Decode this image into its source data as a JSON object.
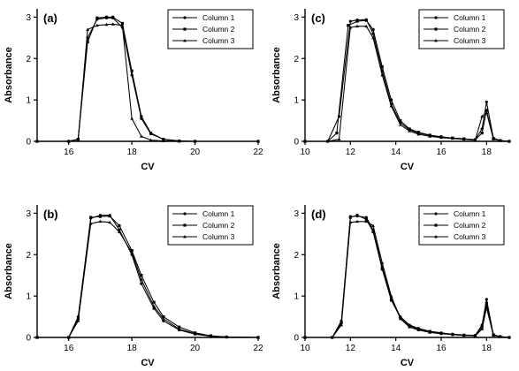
{
  "chart_data": [
    {
      "id": "a",
      "type": "line",
      "panel_label": "(a)",
      "xlabel": "CV",
      "ylabel": "Absorbance",
      "xlim": [
        15,
        22
      ],
      "ylim": [
        0,
        3.2
      ],
      "xticks": [
        16,
        18,
        20,
        22
      ],
      "yticks": [
        0,
        1,
        2,
        3
      ],
      "legend": "top-right",
      "series": [
        {
          "name": "Column 1",
          "x": [
            15,
            16.0,
            16.3,
            16.6,
            16.9,
            17.2,
            17.4,
            17.7,
            18.0,
            18.3,
            18.6,
            19.0,
            19.5,
            20.0,
            22
          ],
          "y": [
            0,
            0,
            0.05,
            2.5,
            2.95,
            2.98,
            2.98,
            2.75,
            1.6,
            0.55,
            0.18,
            0.05,
            0.01,
            0,
            0
          ]
        },
        {
          "name": "Column 2",
          "x": [
            15,
            16.0,
            16.3,
            16.6,
            16.9,
            17.2,
            17.4,
            17.7,
            18.0,
            18.3,
            18.6,
            19.0,
            19.5,
            20.0,
            22
          ],
          "y": [
            0,
            0,
            0.05,
            2.4,
            2.98,
            3.0,
            3.0,
            2.85,
            1.7,
            0.6,
            0.2,
            0.05,
            0.01,
            0,
            0
          ]
        },
        {
          "name": "Column 3",
          "x": [
            15,
            16.0,
            16.3,
            16.6,
            16.9,
            17.2,
            17.4,
            17.7,
            18.0,
            18.3,
            18.6,
            19.0,
            19.5,
            20.0,
            22
          ],
          "y": [
            0,
            0,
            0.05,
            2.7,
            2.8,
            2.82,
            2.83,
            2.8,
            0.55,
            0.12,
            0.03,
            0.01,
            0,
            0,
            0
          ]
        }
      ]
    },
    {
      "id": "c",
      "type": "line",
      "panel_label": "(c)",
      "xlabel": "CV",
      "ylabel": "Absorbance",
      "xlim": [
        10,
        19
      ],
      "ylim": [
        0,
        3.2
      ],
      "xticks": [
        10,
        12,
        14,
        16,
        18
      ],
      "yticks": [
        0,
        1,
        2,
        3
      ],
      "legend": "top-right",
      "series": [
        {
          "name": "Column 1",
          "x": [
            10,
            11.0,
            11.5,
            12.0,
            12.3,
            12.7,
            13.0,
            13.4,
            13.8,
            14.2,
            14.6,
            15.0,
            15.5,
            16.0,
            16.5,
            17.0,
            17.5,
            17.8,
            18.0,
            18.3,
            18.6,
            19.0
          ],
          "y": [
            0,
            0,
            0.6,
            2.9,
            2.93,
            2.94,
            2.6,
            1.7,
            0.9,
            0.45,
            0.28,
            0.2,
            0.14,
            0.1,
            0.08,
            0.06,
            0.04,
            0.3,
            0.95,
            0.08,
            0.02,
            0
          ]
        },
        {
          "name": "Column 2",
          "x": [
            10,
            11.0,
            11.4,
            11.9,
            12.3,
            12.7,
            13.0,
            13.4,
            13.8,
            14.2,
            14.6,
            15.0,
            15.5,
            16.0,
            16.5,
            17.0,
            17.5,
            17.8,
            18.0,
            18.3,
            18.6,
            19.0
          ],
          "y": [
            0,
            0,
            0.2,
            2.8,
            2.9,
            2.92,
            2.7,
            1.8,
            1.0,
            0.5,
            0.3,
            0.22,
            0.15,
            0.11,
            0.08,
            0.06,
            0.04,
            0.2,
            0.75,
            0.06,
            0.02,
            0
          ]
        },
        {
          "name": "Column 3",
          "x": [
            10,
            11.0,
            11.5,
            12.0,
            12.3,
            12.7,
            13.0,
            13.4,
            13.8,
            14.2,
            14.6,
            15.0,
            15.5,
            16.0,
            16.5,
            17.0,
            17.5,
            17.8,
            18.0,
            18.3,
            18.6,
            19.0
          ],
          "y": [
            0,
            0,
            0.05,
            2.75,
            2.78,
            2.78,
            2.5,
            1.6,
            0.85,
            0.4,
            0.25,
            0.17,
            0.12,
            0.09,
            0.07,
            0.05,
            0.03,
            0.6,
            0.7,
            0.06,
            0.02,
            0
          ]
        }
      ]
    },
    {
      "id": "b",
      "type": "line",
      "panel_label": "(b)",
      "xlabel": "CV",
      "ylabel": "Absorbance",
      "xlim": [
        15,
        22
      ],
      "ylim": [
        0,
        3.2
      ],
      "xticks": [
        16,
        18,
        20,
        22
      ],
      "yticks": [
        0,
        1,
        2,
        3
      ],
      "legend": "top-right",
      "series": [
        {
          "name": "Column 1",
          "x": [
            15,
            16.0,
            16.3,
            16.7,
            17.0,
            17.3,
            17.6,
            18.0,
            18.3,
            18.7,
            19.0,
            19.5,
            20.0,
            20.5,
            21.0,
            22
          ],
          "y": [
            0,
            0,
            0.5,
            2.88,
            2.95,
            2.95,
            2.6,
            2.0,
            1.3,
            0.7,
            0.4,
            0.18,
            0.08,
            0.03,
            0.01,
            0
          ]
        },
        {
          "name": "Column 2",
          "x": [
            15,
            16.0,
            16.3,
            16.7,
            17.0,
            17.3,
            17.6,
            18.0,
            18.3,
            18.7,
            19.0,
            19.5,
            20.0,
            20.5,
            21.0,
            22
          ],
          "y": [
            0,
            0,
            0.45,
            2.9,
            2.92,
            2.93,
            2.7,
            2.1,
            1.5,
            0.85,
            0.5,
            0.25,
            0.11,
            0.04,
            0.01,
            0
          ]
        },
        {
          "name": "Column 3",
          "x": [
            15,
            16.0,
            16.3,
            16.7,
            17.0,
            17.3,
            17.6,
            18.0,
            18.3,
            18.7,
            19.0,
            19.5,
            20.0,
            20.5,
            21.0,
            22
          ],
          "y": [
            0,
            0,
            0.4,
            2.75,
            2.8,
            2.78,
            2.55,
            2.05,
            1.4,
            0.75,
            0.45,
            0.2,
            0.09,
            0.03,
            0.01,
            0
          ]
        }
      ]
    },
    {
      "id": "d",
      "type": "line",
      "panel_label": "(d)",
      "xlabel": "CV",
      "ylabel": "Absorbance",
      "xlim": [
        10,
        19
      ],
      "ylim": [
        0,
        3.2
      ],
      "xticks": [
        10,
        12,
        14,
        16,
        18
      ],
      "yticks": [
        0,
        1,
        2,
        3
      ],
      "legend": "top-right",
      "series": [
        {
          "name": "Column 1",
          "x": [
            10,
            11.2,
            11.6,
            12.0,
            12.3,
            12.7,
            13.0,
            13.4,
            13.8,
            14.2,
            14.6,
            15.0,
            15.5,
            16.0,
            16.5,
            17.0,
            17.5,
            17.8,
            18.0,
            18.3,
            18.6,
            19.0
          ],
          "y": [
            0,
            0,
            0.4,
            2.92,
            2.93,
            2.9,
            2.6,
            1.7,
            0.95,
            0.5,
            0.3,
            0.22,
            0.15,
            0.11,
            0.08,
            0.06,
            0.05,
            0.3,
            0.92,
            0.07,
            0.02,
            0
          ]
        },
        {
          "name": "Column 2",
          "x": [
            10,
            11.2,
            11.6,
            12.0,
            12.3,
            12.7,
            13.0,
            13.4,
            13.8,
            14.2,
            14.6,
            15.0,
            15.5,
            16.0,
            16.5,
            17.0,
            17.5,
            17.8,
            18.0,
            18.3,
            18.6,
            19.0
          ],
          "y": [
            0,
            0,
            0.35,
            2.9,
            2.95,
            2.85,
            2.55,
            1.65,
            0.9,
            0.48,
            0.28,
            0.2,
            0.14,
            0.1,
            0.07,
            0.05,
            0.04,
            0.25,
            0.82,
            0.06,
            0.02,
            0
          ]
        },
        {
          "name": "Column 3",
          "x": [
            10,
            11.2,
            11.6,
            12.0,
            12.3,
            12.7,
            13.0,
            13.4,
            13.8,
            14.2,
            14.6,
            15.0,
            15.5,
            16.0,
            16.5,
            17.0,
            17.5,
            17.8,
            18.0,
            18.3,
            18.6,
            19.0
          ],
          "y": [
            0,
            0,
            0.3,
            2.78,
            2.8,
            2.8,
            2.7,
            1.8,
            1.0,
            0.45,
            0.25,
            0.18,
            0.12,
            0.09,
            0.07,
            0.05,
            0.04,
            0.2,
            0.72,
            0.05,
            0.02,
            0
          ]
        }
      ]
    }
  ]
}
